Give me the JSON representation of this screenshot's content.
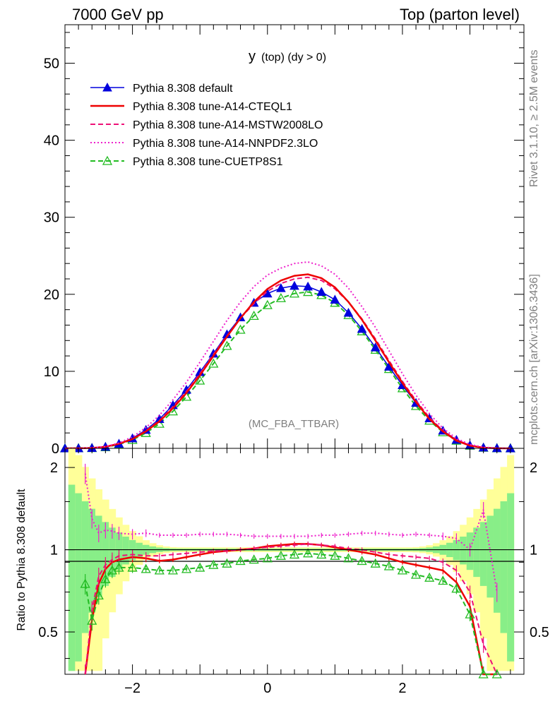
{
  "header": {
    "left": "7000 GeV pp",
    "right": "Top (parton level)"
  },
  "side": {
    "rivet": "Rivet 3.1.10, ≥ 2.5M events",
    "mcplots": "mcplots.cern.ch [arXiv:1306.3436]"
  },
  "chart_data": {
    "type": "line",
    "title": "y (top) (dy > 0)",
    "title_main": "y",
    "title_sub": "(top) (dy > 0)",
    "analysis_label": "(MC_FBA_TTBAR)",
    "xlabel": "",
    "ylabel": "",
    "xlim": [
      -3.0,
      3.8
    ],
    "ylim": [
      0,
      55
    ],
    "xticks": [
      -2,
      0,
      2
    ],
    "xtick_labels": [
      "−2",
      "0",
      "2"
    ],
    "yticks": [
      0,
      10,
      20,
      30,
      40,
      50
    ],
    "ytick_labels": [
      "0",
      "10",
      "20",
      "30",
      "40",
      "50"
    ],
    "x": [
      -3.0,
      -2.8,
      -2.6,
      -2.4,
      -2.2,
      -2.0,
      -1.8,
      -1.6,
      -1.4,
      -1.2,
      -1.0,
      -0.8,
      -0.6,
      -0.4,
      -0.2,
      0.0,
      0.2,
      0.4,
      0.6,
      0.8,
      1.0,
      1.2,
      1.4,
      1.6,
      1.8,
      2.0,
      2.2,
      2.4,
      2.6,
      2.8,
      3.0,
      3.2,
      3.4,
      3.6
    ],
    "series": [
      {
        "name": "Pythia 8.308 default",
        "color": "#0000dd",
        "style": "solid",
        "marker": "triangle-filled",
        "values": [
          0.0,
          0.01,
          0.05,
          0.2,
          0.6,
          1.3,
          2.4,
          3.8,
          5.6,
          7.6,
          9.9,
          12.3,
          14.8,
          17.0,
          18.9,
          20.1,
          20.8,
          21.1,
          21.0,
          20.3,
          19.3,
          17.6,
          15.5,
          13.1,
          10.6,
          8.2,
          5.9,
          3.9,
          2.3,
          1.1,
          0.4,
          0.1,
          0.02,
          0.0
        ]
      },
      {
        "name": "Pythia 8.308 tune-A14-CTEQL1",
        "color": "#ee0000",
        "style": "solid",
        "marker": "none",
        "values": [
          0.0,
          0.01,
          0.05,
          0.2,
          0.6,
          1.2,
          2.2,
          3.5,
          5.2,
          7.2,
          9.5,
          12.0,
          14.5,
          16.9,
          19.0,
          20.7,
          21.8,
          22.4,
          22.6,
          22.1,
          20.9,
          19.0,
          16.7,
          14.0,
          11.2,
          8.5,
          6.0,
          3.8,
          2.2,
          1.0,
          0.35,
          0.08,
          0.01,
          0.0
        ]
      },
      {
        "name": "Pythia 8.308 tune-A14-MSTW2008LO",
        "color": "#ee1177",
        "style": "dashed",
        "marker": "none",
        "values": [
          0.0,
          0.01,
          0.05,
          0.2,
          0.6,
          1.2,
          2.3,
          3.6,
          5.4,
          7.4,
          9.7,
          12.2,
          14.6,
          16.9,
          18.8,
          20.4,
          21.4,
          22.0,
          22.2,
          21.8,
          20.7,
          19.0,
          16.8,
          14.2,
          11.4,
          8.7,
          6.2,
          4.0,
          2.3,
          1.1,
          0.4,
          0.09,
          0.02,
          0.0
        ]
      },
      {
        "name": "Pythia 8.308 tune-A14-NNPDF2.3LO",
        "color": "#ee22cc",
        "style": "dotted",
        "marker": "none",
        "values": [
          0.0,
          0.01,
          0.06,
          0.25,
          0.7,
          1.5,
          2.7,
          4.3,
          6.3,
          8.6,
          11.2,
          13.9,
          16.6,
          19.0,
          21.0,
          22.5,
          23.4,
          24.0,
          24.2,
          23.7,
          22.6,
          20.8,
          18.4,
          15.7,
          12.7,
          9.7,
          6.9,
          4.5,
          2.6,
          1.3,
          0.5,
          0.15,
          0.04,
          0.0
        ]
      },
      {
        "name": "Pythia 8.308 tune-CUETP8S1",
        "color": "#22bb22",
        "style": "dashed",
        "marker": "triangle-open",
        "values": [
          0.0,
          0.01,
          0.04,
          0.15,
          0.5,
          1.1,
          2.0,
          3.2,
          4.8,
          6.7,
          8.8,
          11.0,
          13.3,
          15.4,
          17.2,
          18.6,
          19.5,
          20.1,
          20.3,
          19.9,
          18.9,
          17.3,
          15.2,
          12.8,
          10.3,
          7.8,
          5.5,
          3.6,
          2.1,
          1.0,
          0.35,
          0.08,
          0.01,
          0.0
        ]
      }
    ],
    "ratio": {
      "ylabel": "Ratio to Pythia 8.308 default",
      "ylim": [
        0.35,
        2.35
      ],
      "yticks": [
        0.5,
        1,
        2
      ],
      "ytick_labels": [
        "0.5",
        "1",
        "2"
      ],
      "x": [
        -2.7,
        -2.6,
        -2.5,
        -2.4,
        -2.3,
        -2.2,
        -2.0,
        -1.8,
        -1.6,
        -1.4,
        -1.2,
        -1.0,
        -0.8,
        -0.6,
        -0.4,
        -0.2,
        0.0,
        0.2,
        0.4,
        0.6,
        0.8,
        1.0,
        1.2,
        1.4,
        1.6,
        1.8,
        2.0,
        2.2,
        2.4,
        2.6,
        2.8,
        3.0,
        3.2,
        3.4
      ],
      "series": [
        {
          "name": "Pythia 8.308 tune-A14-CTEQL1",
          "values": [
            0.3,
            0.55,
            0.75,
            0.85,
            0.9,
            0.92,
            0.94,
            0.93,
            0.91,
            0.92,
            0.94,
            0.96,
            0.98,
            0.99,
            1.0,
            1.01,
            1.03,
            1.04,
            1.05,
            1.05,
            1.04,
            1.02,
            1.0,
            0.98,
            0.96,
            0.93,
            0.9,
            0.88,
            0.86,
            0.84,
            0.76,
            0.62,
            0.35,
            0.2
          ]
        },
        {
          "name": "Pythia 8.308 tune-A14-MSTW2008LO",
          "values": [
            0.35,
            0.6,
            0.8,
            0.88,
            0.92,
            0.95,
            0.96,
            0.95,
            0.95,
            0.96,
            0.97,
            0.98,
            0.99,
            0.99,
            1.0,
            1.01,
            1.02,
            1.03,
            1.04,
            1.05,
            1.04,
            1.03,
            1.01,
            1.0,
            0.98,
            0.96,
            0.95,
            0.94,
            0.93,
            0.9,
            0.84,
            0.7,
            0.45,
            0.3
          ]
        },
        {
          "name": "Pythia 8.308 tune-A14-NNPDF2.3LO",
          "values": [
            1.9,
            1.3,
            1.15,
            1.18,
            1.17,
            1.15,
            1.14,
            1.15,
            1.13,
            1.13,
            1.13,
            1.14,
            1.14,
            1.14,
            1.13,
            1.12,
            1.12,
            1.12,
            1.12,
            1.12,
            1.13,
            1.13,
            1.14,
            1.15,
            1.15,
            1.14,
            1.13,
            1.14,
            1.13,
            1.12,
            1.1,
            1.0,
            1.4,
            0.7
          ]
        },
        {
          "name": "Pythia 8.308 tune-CUETP8S1",
          "values": [
            0.75,
            0.55,
            0.68,
            0.78,
            0.84,
            0.86,
            0.86,
            0.85,
            0.84,
            0.84,
            0.85,
            0.86,
            0.88,
            0.89,
            0.91,
            0.92,
            0.93,
            0.95,
            0.96,
            0.97,
            0.96,
            0.95,
            0.93,
            0.91,
            0.89,
            0.87,
            0.84,
            0.81,
            0.79,
            0.77,
            0.72,
            0.58,
            0.35,
            0.25
          ]
        }
      ]
    }
  }
}
